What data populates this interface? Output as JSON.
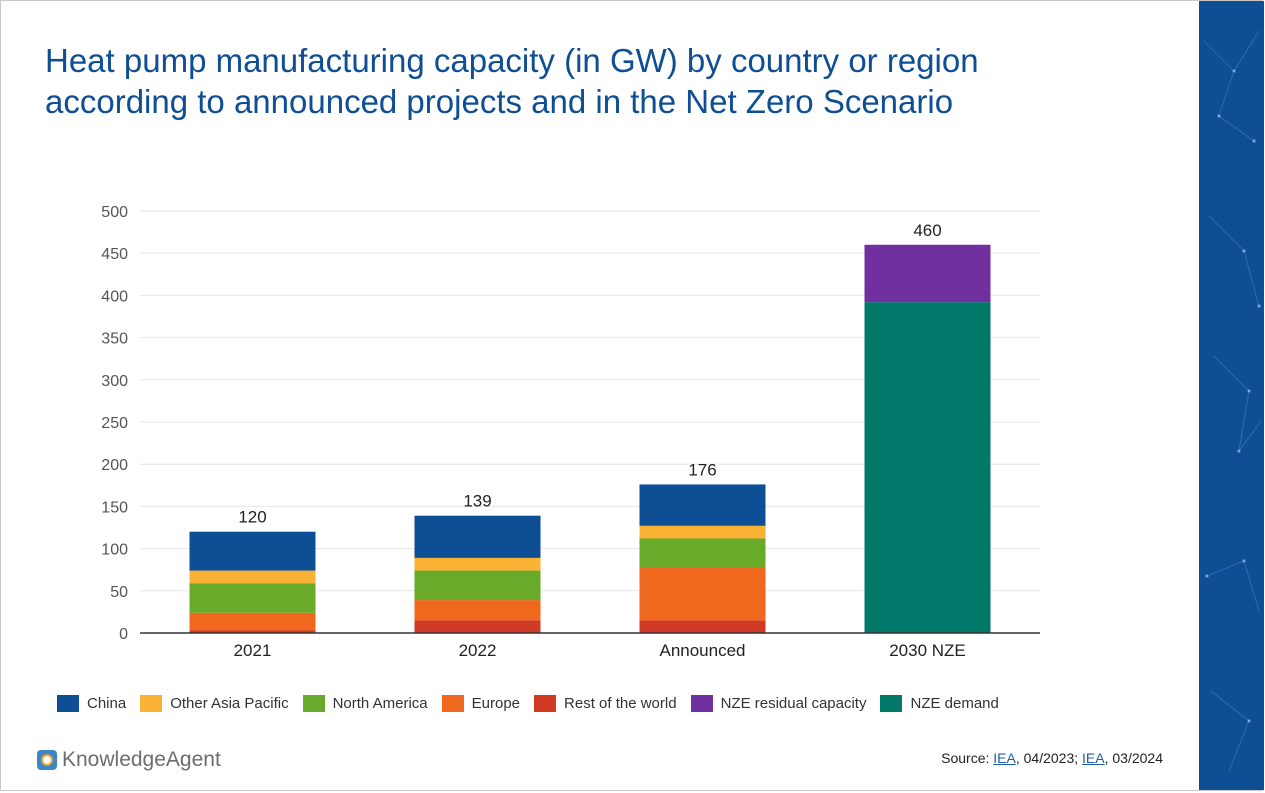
{
  "title_lines": [
    "Heat pump manufacturing capacity (in GW) by country or region",
    "according to announced projects and in the Net Zero Scenario"
  ],
  "brand": "KnowledgeAgent",
  "source": {
    "prefix": "Source: ",
    "link1": "IEA",
    "date1": ", 04/2023; ",
    "link2": "IEA",
    "date2": ", 03/2024"
  },
  "colors": {
    "China": "#0e4e94",
    "Other Asia Pacific": "#f9b233",
    "North America": "#6aaa2a",
    "Europe": "#f0671e",
    "Rest of the world": "#d13a25",
    "NZE residual capacity": "#7030a0",
    "NZE demand": "#00796b",
    "side_panel": "#0e4e94"
  },
  "chart_data": {
    "type": "bar",
    "stacked": true,
    "title": "Heat pump manufacturing capacity (in GW) by country or region according to announced projects and in the Net Zero Scenario",
    "categories": [
      "2021",
      "2022",
      "Announced",
      "2030 NZE"
    ],
    "series": [
      {
        "name": "Rest of the world",
        "values": [
          3,
          15,
          15,
          0
        ]
      },
      {
        "name": "Europe",
        "values": [
          21,
          24,
          62,
          0
        ]
      },
      {
        "name": "North America",
        "values": [
          35,
          35,
          35,
          0
        ]
      },
      {
        "name": "Other Asia Pacific",
        "values": [
          15,
          15,
          15,
          0
        ]
      },
      {
        "name": "China",
        "values": [
          46,
          50,
          49,
          0
        ]
      },
      {
        "name": "NZE demand",
        "values": [
          0,
          0,
          0,
          392
        ]
      },
      {
        "name": "NZE residual capacity",
        "values": [
          0,
          0,
          0,
          68
        ]
      }
    ],
    "totals": [
      "120",
      "139",
      "176",
      "460"
    ],
    "legend_order": [
      "China",
      "Other Asia Pacific",
      "North America",
      "Europe",
      "Rest of the world",
      "NZE residual capacity",
      "NZE demand"
    ],
    "ylim": [
      0,
      500
    ],
    "yticks": [
      0,
      50,
      100,
      150,
      200,
      250,
      300,
      350,
      400,
      450,
      500
    ],
    "xlabel": "",
    "ylabel": "",
    "grid": true,
    "legend_position": "bottom"
  }
}
